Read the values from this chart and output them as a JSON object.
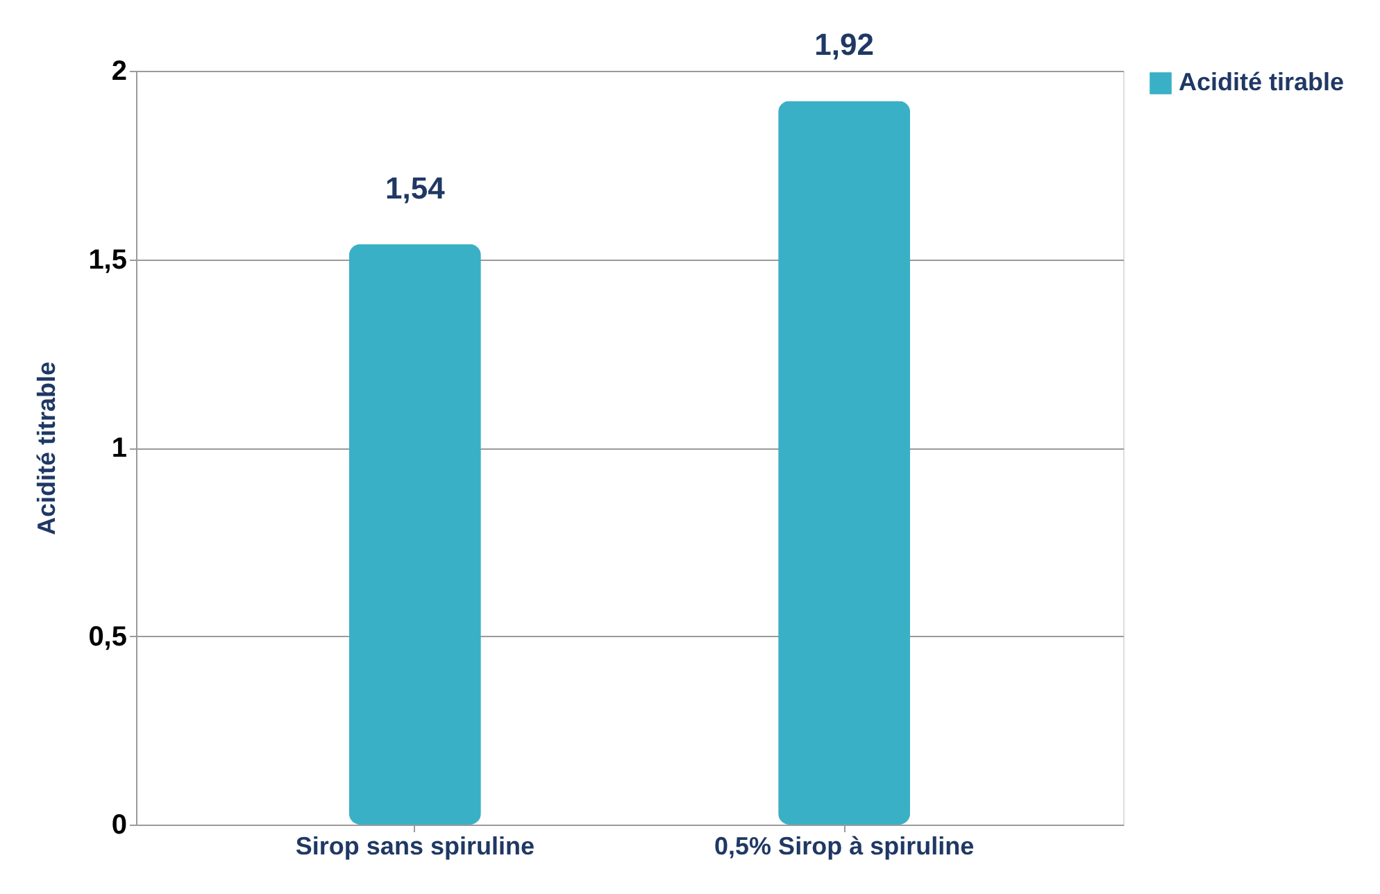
{
  "chart_data": {
    "type": "bar",
    "ylabel": "Acidité titrable",
    "categories": [
      "Sirop sans spiruline",
      "0,5% Sirop à spiruline"
    ],
    "series": [
      {
        "name": "Acidité tirable",
        "color": "#3ab0c6",
        "values": [
          1.54,
          1.92
        ],
        "value_labels": [
          "1,54",
          "1,92"
        ]
      }
    ],
    "ylim": [
      0,
      2
    ],
    "yticks": [
      0,
      {
        "value": 0.5,
        "label": "0,5"
      },
      1,
      {
        "value": 1.5,
        "label": "1,5"
      },
      2
    ],
    "grid": "y",
    "legend": "right"
  }
}
